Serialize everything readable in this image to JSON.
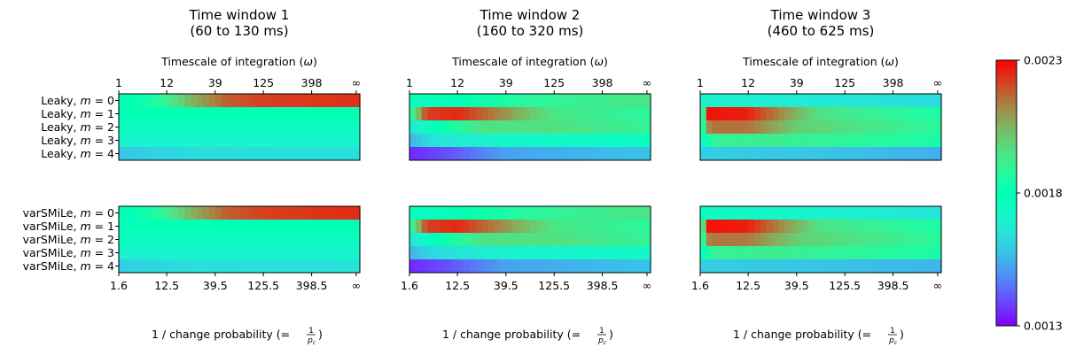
{
  "chart_data": {
    "type": "heatmap",
    "panels": [
      {
        "title_line1": "Time window 1",
        "title_line2": "(60 to 130 ms)"
      },
      {
        "title_line1": "Time window 2",
        "title_line2": "(160 to 320 ms)"
      },
      {
        "title_line1": "Time window 3",
        "title_line2": "(460 to 625 ms)"
      }
    ],
    "top_axis": {
      "label_text": "Timescale of integration (",
      "label_symbol": "ω",
      "label_close": ")",
      "tick_labels": [
        "1",
        "12",
        "39",
        "125",
        "398",
        "∞"
      ]
    },
    "bottom_axis": {
      "label_text": "1 / change probability (= ",
      "label_close": ")",
      "frac_num": "1",
      "frac_den": "p",
      "frac_den_sub": "c",
      "tick_labels": [
        "1.6",
        "12.5",
        "39.5",
        "125.5",
        "398.5",
        "∞"
      ]
    },
    "row_groups": [
      {
        "model": "Leaky",
        "rows": [
          "Leaky, m = 0",
          "Leaky, m = 1",
          "Leaky, m = 2",
          "Leaky, m = 3",
          "Leaky, m = 4"
        ]
      },
      {
        "model": "varSMiLe",
        "rows": [
          "varSMiLe, m = 0",
          "varSMiLe, m = 1",
          "varSMiLe, m = 2",
          "varSMiLe, m = 3",
          "varSMiLe, m = 4"
        ]
      }
    ],
    "colorbar": {
      "colormap": "rainbow",
      "vmin": 0.0013,
      "vmax": 0.0023,
      "tick_labels": [
        "0.0023",
        "0.0018",
        "0.0013"
      ],
      "tick_values": [
        0.0023,
        0.0018,
        0.0013
      ]
    },
    "profiles": [
      [
        [
          [
            0,
            0.00178
          ],
          [
            0.15,
            0.00185
          ],
          [
            0.3,
            0.00205
          ],
          [
            0.45,
            0.00218
          ],
          [
            0.6,
            0.00222
          ],
          [
            1,
            0.00224
          ]
        ],
        [
          [
            0,
            0.0018
          ],
          [
            1,
            0.00181
          ]
        ],
        [
          [
            0,
            0.00175
          ],
          [
            1,
            0.00175
          ]
        ],
        [
          [
            0,
            0.0017
          ],
          [
            1,
            0.00171
          ]
        ],
        [
          [
            0,
            0.00158
          ],
          [
            0.3,
            0.00163
          ],
          [
            1,
            0.00164
          ]
        ]
      ],
      [
        [
          [
            0,
            0.00175
          ],
          [
            0.2,
            0.0018
          ],
          [
            0.5,
            0.00188
          ],
          [
            1,
            0.00195
          ]
        ],
        [
          [
            0,
            0.00185
          ],
          [
            0.03,
            0.002
          ],
          [
            0.07,
            0.00222
          ],
          [
            0.2,
            0.00225
          ],
          [
            0.4,
            0.0021
          ],
          [
            0.6,
            0.00194
          ],
          [
            1,
            0.00188
          ]
        ],
        [
          [
            0,
            0.00165
          ],
          [
            0.1,
            0.00178
          ],
          [
            0.3,
            0.00195
          ],
          [
            0.6,
            0.00196
          ],
          [
            1,
            0.0019
          ]
        ],
        [
          [
            0,
            0.00155
          ],
          [
            0.1,
            0.00165
          ],
          [
            0.4,
            0.00172
          ],
          [
            1,
            0.00175
          ]
        ],
        [
          [
            0,
            0.00135
          ],
          [
            0.15,
            0.0014
          ],
          [
            0.4,
            0.00152
          ],
          [
            1,
            0.00158
          ]
        ]
      ],
      [
        [
          [
            0,
            0.0017
          ],
          [
            1,
            0.00163
          ]
        ],
        [
          [
            0,
            0.00165
          ],
          [
            0.03,
            0.00228
          ],
          [
            0.2,
            0.00226
          ],
          [
            0.35,
            0.0021
          ],
          [
            0.5,
            0.00195
          ],
          [
            1,
            0.00185
          ]
        ],
        [
          [
            0,
            0.00175
          ],
          [
            0.04,
            0.00215
          ],
          [
            0.2,
            0.00215
          ],
          [
            0.4,
            0.002
          ],
          [
            1,
            0.00188
          ]
        ],
        [
          [
            0,
            0.00168
          ],
          [
            0.05,
            0.0019
          ],
          [
            0.3,
            0.00192
          ],
          [
            1,
            0.00185
          ]
        ],
        [
          [
            0,
            0.0016
          ],
          [
            0.5,
            0.00158
          ],
          [
            1,
            0.00154
          ]
        ]
      ]
    ],
    "profiles_varsmile": [
      [
        [
          [
            0,
            0.00178
          ],
          [
            0.15,
            0.00185
          ],
          [
            0.3,
            0.00205
          ],
          [
            0.45,
            0.00218
          ],
          [
            0.6,
            0.00222
          ],
          [
            1,
            0.00225
          ]
        ],
        [
          [
            0,
            0.00178
          ],
          [
            1,
            0.0018
          ]
        ],
        [
          [
            0,
            0.00175
          ],
          [
            1,
            0.00175
          ]
        ],
        [
          [
            0,
            0.0017
          ],
          [
            1,
            0.00171
          ]
        ],
        [
          [
            0,
            0.0016
          ],
          [
            0.3,
            0.00164
          ],
          [
            1,
            0.00165
          ]
        ]
      ],
      [
        [
          [
            0,
            0.00175
          ],
          [
            0.2,
            0.0018
          ],
          [
            0.5,
            0.00188
          ],
          [
            1,
            0.00195
          ]
        ],
        [
          [
            0,
            0.00185
          ],
          [
            0.03,
            0.002
          ],
          [
            0.07,
            0.00222
          ],
          [
            0.2,
            0.00225
          ],
          [
            0.4,
            0.0021
          ],
          [
            0.6,
            0.00194
          ],
          [
            1,
            0.00188
          ]
        ],
        [
          [
            0,
            0.00165
          ],
          [
            0.1,
            0.00178
          ],
          [
            0.3,
            0.00195
          ],
          [
            0.6,
            0.00196
          ],
          [
            1,
            0.0019
          ]
        ],
        [
          [
            0,
            0.00155
          ],
          [
            0.1,
            0.00163
          ],
          [
            0.4,
            0.0017
          ],
          [
            1,
            0.00173
          ]
        ],
        [
          [
            0,
            0.00135
          ],
          [
            0.15,
            0.0014
          ],
          [
            0.4,
            0.00152
          ],
          [
            1,
            0.00158
          ]
        ]
      ],
      [
        [
          [
            0,
            0.00175
          ],
          [
            1,
            0.00165
          ]
        ],
        [
          [
            0,
            0.00175
          ],
          [
            0.03,
            0.00228
          ],
          [
            0.2,
            0.00226
          ],
          [
            0.35,
            0.0021
          ],
          [
            0.5,
            0.00195
          ],
          [
            1,
            0.00185
          ]
        ],
        [
          [
            0,
            0.00178
          ],
          [
            0.04,
            0.00215
          ],
          [
            0.2,
            0.00214
          ],
          [
            0.4,
            0.002
          ],
          [
            1,
            0.00188
          ]
        ],
        [
          [
            0,
            0.00175
          ],
          [
            0.05,
            0.0019
          ],
          [
            0.3,
            0.00192
          ],
          [
            1,
            0.00185
          ]
        ],
        [
          [
            0,
            0.0016
          ],
          [
            0.5,
            0.00158
          ],
          [
            1,
            0.00155
          ]
        ]
      ]
    ]
  }
}
